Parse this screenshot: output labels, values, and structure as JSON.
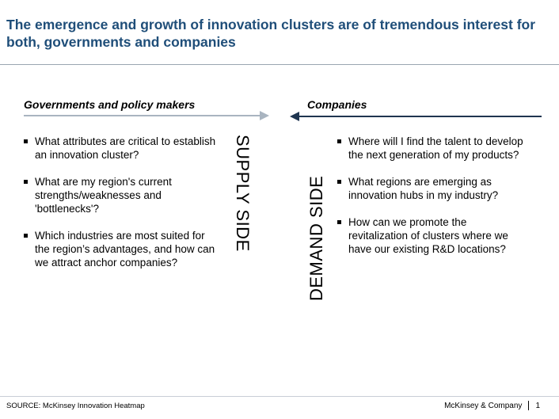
{
  "title": "The emergence and growth of innovation clusters are of tremendous interest for both, governments and companies",
  "left": {
    "heading": "Governments and policy makers",
    "side_label": "SUPPLY SIDE",
    "bullets": [
      "What attributes are critical to establish an innovation cluster?",
      "What are my region's current strengths/weaknesses and 'bottlenecks'?",
      "Which industries are most suited for the region’s advantages, and how can we attract anchor companies?"
    ]
  },
  "right": {
    "heading": "Companies",
    "side_label": "DEMAND SIDE",
    "bullets": [
      "Where will I find the talent to develop the next generation of my products?",
      "What regions are emerging as innovation hubs in my industry?",
      "How can we promote the revitalization of clusters where we have our existing R&D locations?"
    ]
  },
  "source": "SOURCE: McKinsey Innovation Heatmap",
  "footer": {
    "brand": "McKinsey & Company",
    "page": "1"
  },
  "colors": {
    "title": "#1f4e79",
    "left_arrow": "#a9b4c0",
    "right_arrow": "#1f3550"
  }
}
